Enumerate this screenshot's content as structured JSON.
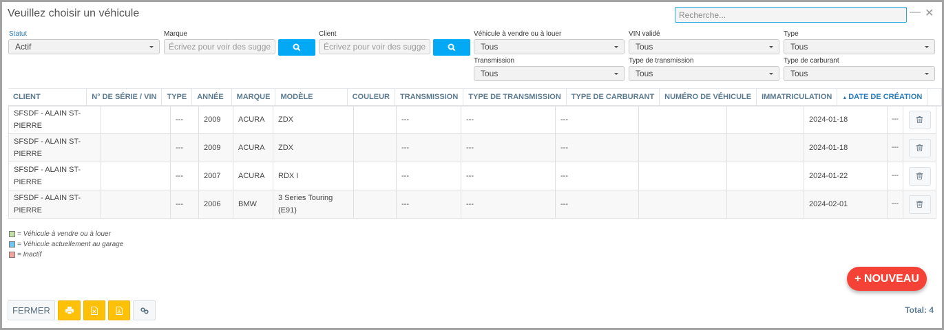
{
  "window": {
    "title": "Veuillez choisir un véhicule",
    "search_placeholder": "Recherche...",
    "minimize_icon": "minus",
    "close_icon": "x"
  },
  "filters": {
    "statut": {
      "label": "Statut",
      "value": "Actif"
    },
    "marque": {
      "label": "Marque",
      "placeholder": "Écrivez pour voir des suggestions"
    },
    "client": {
      "label": "Client",
      "placeholder": "Écrivez pour voir des suggestions"
    },
    "vendre_louer": {
      "label": "Véhicule à vendre ou à louer",
      "value": "Tous"
    },
    "vin_valide": {
      "label": "VIN validé",
      "value": "Tous"
    },
    "type": {
      "label": "Type",
      "value": "Tous"
    },
    "transmission": {
      "label": "Transmission",
      "value": "Tous"
    },
    "type_transmission": {
      "label": "Type de transmission",
      "value": "Tous"
    },
    "type_carburant": {
      "label": "Type de carburant",
      "value": "Tous"
    }
  },
  "table": {
    "columns": [
      "CLIENT",
      "N° DE SÉRIE / VIN",
      "TYPE",
      "ANNÉE",
      "MARQUE",
      "MODÈLE",
      "COULEUR",
      "TRANSMISSION",
      "TYPE DE TRANSMISSION",
      "TYPE DE CARBURANT",
      "NUMÉRO DE VÉHICULE",
      "IMMATRICULATION",
      "DATE DE CRÉATION"
    ],
    "sorted_column": "DATE DE CRÉATION",
    "sort_direction": "ascending",
    "rows": [
      {
        "client": "SFSDF - ALAIN ST-PIERRE",
        "vin": "",
        "type": "---",
        "annee": "2009",
        "marque": "ACURA",
        "modele": "ZDX",
        "couleur": "",
        "transmission": "---",
        "type_transmission": "---",
        "type_carburant": "---",
        "numero": "",
        "immatriculation": "",
        "date": "2024-01-18",
        "extra": "---"
      },
      {
        "client": "SFSDF - ALAIN ST-PIERRE",
        "vin": "",
        "type": "---",
        "annee": "2009",
        "marque": "ACURA",
        "modele": "ZDX",
        "couleur": "",
        "transmission": "---",
        "type_transmission": "---",
        "type_carburant": "---",
        "numero": "",
        "immatriculation": "",
        "date": "2024-01-18",
        "extra": "---"
      },
      {
        "client": "SFSDF - ALAIN ST-PIERRE",
        "vin": "",
        "type": "---",
        "annee": "2007",
        "marque": "ACURA",
        "modele": "RDX I",
        "couleur": "",
        "transmission": "---",
        "type_transmission": "---",
        "type_carburant": "---",
        "numero": "",
        "immatriculation": "",
        "date": "2024-01-22",
        "extra": "---"
      },
      {
        "client": "SFSDF - ALAIN ST-PIERRE",
        "vin": "",
        "type": "---",
        "annee": "2006",
        "marque": "BMW",
        "modele": "3 Series Touring (E91)",
        "couleur": "",
        "transmission": "---",
        "type_transmission": "---",
        "type_carburant": "---",
        "numero": "",
        "immatriculation": "",
        "date": "2024-02-01",
        "extra": "---"
      }
    ]
  },
  "legend": [
    {
      "color": "#c5e0a5",
      "text": "= Véhicule à vendre ou à louer"
    },
    {
      "color": "#6ec6f0",
      "text": "= Véhicule actuellement au garage"
    },
    {
      "color": "#f4a3a0",
      "text": "= Inactif"
    }
  ],
  "footer": {
    "close_label": "FERMER",
    "new_label": "+ NOUVEAU",
    "total": "Total: 4"
  },
  "colors": {
    "accent": "#03a9f4",
    "new_button": "#f44336",
    "export_buttons": "#ffc107"
  }
}
